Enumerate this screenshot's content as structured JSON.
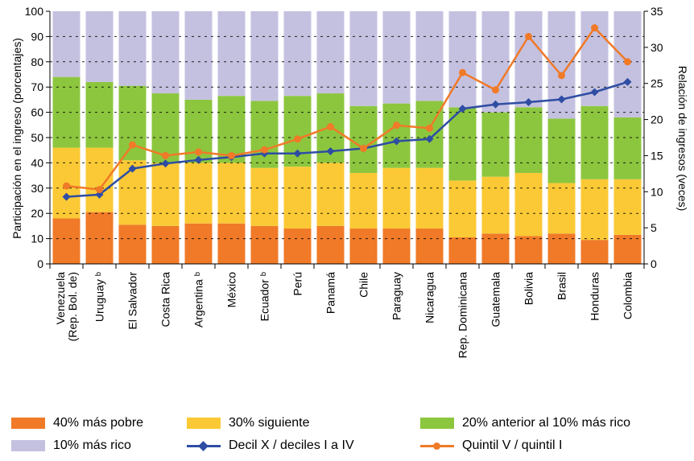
{
  "chart_data": {
    "type": "bar",
    "stacked": true,
    "categories": [
      "Venezuela\n(Rep. Bol. de)",
      "Uruguay ᵇ",
      "El Salvador",
      "Costa Rica",
      "Argentina ᵇ",
      "México",
      "Ecuador ᵇ",
      "Perú",
      "Panamá",
      "Chile",
      "Paraguay",
      "Nicaragua",
      "Rep. Dominicana",
      "Guatemala",
      "Bolivia",
      "Brasil",
      "Honduras",
      "Colombia"
    ],
    "series": [
      {
        "name": "40% más pobre",
        "color": "#f07a28",
        "axis": "left",
        "values": [
          18,
          20.5,
          15.5,
          15,
          16,
          16,
          15,
          14,
          15,
          14,
          14,
          14,
          10.5,
          12,
          11,
          12,
          9.5,
          11.5
        ]
      },
      {
        "name": "30% siguiente",
        "color": "#fbc935",
        "axis": "left",
        "values": [
          28,
          25.5,
          25.5,
          25,
          24,
          24,
          23,
          24.5,
          25,
          22,
          24,
          24,
          22.5,
          22.5,
          25,
          20,
          24,
          22
        ]
      },
      {
        "name": "20% anterior al 10% más rico",
        "color": "#8cc63f",
        "axis": "left",
        "values": [
          28,
          26,
          29.5,
          27.5,
          25,
          26.5,
          26.5,
          28,
          27.5,
          26.5,
          25.5,
          26.5,
          29,
          25.5,
          26,
          25.5,
          29,
          24.5
        ]
      },
      {
        "name": "10% más rico",
        "color": "#c4c1e0",
        "axis": "left",
        "values": [
          26,
          28,
          29.5,
          32.5,
          35,
          33.5,
          35.5,
          33.5,
          32.5,
          37.5,
          36.5,
          35.5,
          38,
          40,
          38,
          42.5,
          37.5,
          42
        ]
      },
      {
        "name": "Decil X / deciles I a IV",
        "type": "line",
        "marker": "diamond",
        "color": "#2e4da3",
        "axis": "right",
        "values": [
          9.3,
          9.6,
          13.2,
          13.9,
          14.4,
          14.8,
          15.3,
          15.3,
          15.6,
          16.0,
          17.0,
          17.3,
          21.5,
          22.1,
          22.4,
          22.8,
          23.8,
          25.2
        ]
      },
      {
        "name": "Quintil V / quintil I",
        "type": "line",
        "marker": "circle",
        "color": "#f07a28",
        "axis": "right",
        "values": [
          10.8,
          10.3,
          16.5,
          15.0,
          15.5,
          15.0,
          15.8,
          17.3,
          19.0,
          16.0,
          19.2,
          18.8,
          26.5,
          24.1,
          31.5,
          26.1,
          32.7,
          28.0
        ]
      }
    ],
    "ylabel": "Participación en el ingreso (porcentajes)",
    "ylim": [
      0,
      100
    ],
    "yticks": [
      "0",
      "10",
      "20",
      "30",
      "40",
      "50",
      "60",
      "70",
      "80",
      "90",
      "100"
    ],
    "y2label": "Relación de ingresos (veces)",
    "y2lim": [
      0,
      35
    ],
    "y2ticks": [
      "0",
      "5",
      "10",
      "15",
      "20",
      "25",
      "30",
      "35"
    ],
    "grid": "horizontal dashed",
    "legend_position": "bottom"
  },
  "legend": {
    "items": [
      {
        "label": "40% más pobre",
        "color": "#f07a28"
      },
      {
        "label": "30% siguiente",
        "color": "#fbc935"
      },
      {
        "label": "20% anterior al 10% más rico",
        "color": "#8cc63f"
      },
      {
        "label": "10% más rico",
        "color": "#c4c1e0"
      },
      {
        "label": "Decil X / deciles I a IV",
        "color": "#2e4da3"
      },
      {
        "label": "Quintil V / quintil I",
        "color": "#f07a28"
      }
    ]
  }
}
